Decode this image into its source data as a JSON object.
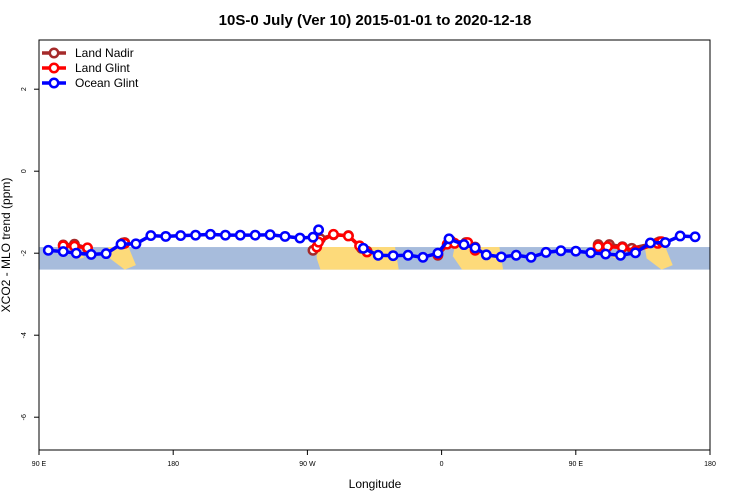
{
  "chart_data": {
    "type": "line",
    "title": "10S-0 July (Ver 10)   2015-01-01 to 2020-12-18",
    "xlabel": "Longitude",
    "ylabel": "XCO2 - MLO trend (ppm)",
    "xlim": [
      90,
      450
    ],
    "ylim": [
      -6.8,
      3.2
    ],
    "x_ticks": [
      {
        "value": 90,
        "label": "90 E"
      },
      {
        "value": 162,
        "label": "180"
      },
      {
        "value": 234,
        "label": "90 W"
      },
      {
        "value": 306,
        "label": "0"
      },
      {
        "value": 378,
        "label": "90 E"
      },
      {
        "value": 450,
        "label": "180"
      }
    ],
    "y_ticks": [
      {
        "value": 2,
        "label": "2"
      },
      {
        "value": 0,
        "label": "0"
      },
      {
        "value": -2,
        "label": "-2"
      },
      {
        "value": -4,
        "label": "-4"
      },
      {
        "value": -6,
        "label": "-6"
      }
    ],
    "map_band": {
      "y_top": -1.85,
      "y_bottom": -2.4
    },
    "legend": {
      "position": "top-left"
    },
    "series": [
      {
        "name": "Land Nadir",
        "color": "#a52a2a",
        "points": [
          [
            103,
            -1.8
          ],
          [
            109,
            -1.78
          ],
          [
            116,
            -1.88
          ],
          [
            135,
            -1.75
          ],
          [
            136,
            -1.74
          ],
          [
            237,
            -1.93
          ],
          [
            241,
            -1.65
          ],
          [
            248,
            -1.55
          ],
          [
            256,
            -1.57
          ],
          [
            263,
            -1.88
          ],
          [
            266,
            -1.95
          ],
          [
            304,
            -2.05
          ],
          [
            311,
            -1.7
          ],
          [
            319,
            -1.74
          ],
          [
            324,
            -1.85
          ],
          [
            390,
            -1.79
          ],
          [
            396,
            -1.79
          ],
          [
            403,
            -1.84
          ],
          [
            408,
            -1.88
          ],
          [
            422,
            -1.74
          ],
          [
            423,
            -1.72
          ]
        ],
        "segments": [
          [
            0,
            2
          ],
          [
            3,
            4
          ],
          [
            5,
            10
          ],
          [
            11,
            14
          ],
          [
            15,
            20
          ]
        ]
      },
      {
        "name": "Land Glint",
        "color": "#ff0000",
        "points": [
          [
            103,
            -1.82
          ],
          [
            109,
            -1.83
          ],
          [
            116,
            -1.87
          ],
          [
            135,
            -1.77
          ],
          [
            136,
            -1.76
          ],
          [
            239,
            -1.85
          ],
          [
            240,
            -1.73
          ],
          [
            248,
            -1.54
          ],
          [
            256,
            -1.58
          ],
          [
            262,
            -1.82
          ],
          [
            266,
            -1.97
          ],
          [
            304,
            -2.03
          ],
          [
            309,
            -1.78
          ],
          [
            313,
            -1.76
          ],
          [
            320,
            -1.74
          ],
          [
            324,
            -1.93
          ],
          [
            390,
            -1.84
          ],
          [
            395,
            -1.84
          ],
          [
            403,
            -1.86
          ],
          [
            410,
            -1.94
          ],
          [
            422,
            -1.76
          ],
          [
            424,
            -1.72
          ]
        ],
        "segments": [
          [
            0,
            2
          ],
          [
            3,
            4
          ],
          [
            5,
            10
          ],
          [
            11,
            15
          ],
          [
            16,
            21
          ]
        ]
      },
      {
        "name": "Ocean Glint",
        "color": "#0000ff",
        "points": [
          [
            95,
            -1.93
          ],
          [
            103,
            -1.96
          ],
          [
            110,
            -2.0
          ],
          [
            118,
            -2.03
          ],
          [
            126,
            -2.01
          ],
          [
            134,
            -1.78
          ],
          [
            142,
            -1.77
          ],
          [
            150,
            -1.57
          ],
          [
            158,
            -1.59
          ],
          [
            166,
            -1.57
          ],
          [
            174,
            -1.56
          ],
          [
            182,
            -1.54
          ],
          [
            190,
            -1.56
          ],
          [
            198,
            -1.56
          ],
          [
            206,
            -1.56
          ],
          [
            214,
            -1.55
          ],
          [
            222,
            -1.59
          ],
          [
            230,
            -1.63
          ],
          [
            237,
            -1.61
          ],
          [
            240,
            -1.43
          ],
          [
            264,
            -1.88
          ],
          [
            272,
            -2.05
          ],
          [
            280,
            -2.06
          ],
          [
            288,
            -2.05
          ],
          [
            296,
            -2.1
          ],
          [
            304,
            -2.0
          ],
          [
            310,
            -1.65
          ],
          [
            318,
            -1.79
          ],
          [
            324,
            -1.87
          ],
          [
            330,
            -2.04
          ],
          [
            338,
            -2.09
          ],
          [
            346,
            -2.05
          ],
          [
            354,
            -2.1
          ],
          [
            362,
            -1.98
          ],
          [
            370,
            -1.94
          ],
          [
            378,
            -1.95
          ],
          [
            386,
            -1.99
          ],
          [
            394,
            -2.02
          ],
          [
            402,
            -2.05
          ],
          [
            410,
            -1.99
          ],
          [
            418,
            -1.75
          ],
          [
            426,
            -1.74
          ],
          [
            434,
            -1.58
          ],
          [
            442,
            -1.6
          ]
        ],
        "segments": [
          [
            0,
            19
          ],
          [
            20,
            43
          ]
        ]
      }
    ]
  }
}
